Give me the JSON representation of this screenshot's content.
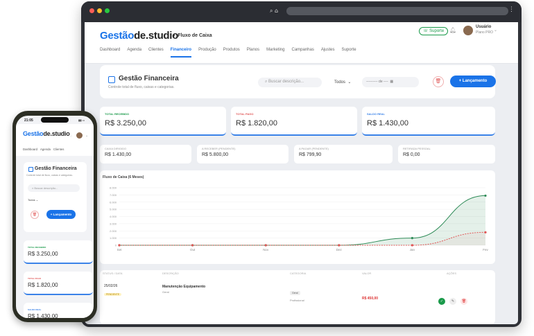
{
  "app": {
    "logo_part1": "Gestão",
    "logo_part2": "de.studio",
    "breadcrumb": "Fluxo de Caixa",
    "support": "Suporte",
    "user_name": "Usuário",
    "user_plan": "Plano PRO"
  },
  "nav": [
    "Dashboard",
    "Agenda",
    "Clientes",
    "Financeiro",
    "Produção",
    "Produtos",
    "Planos",
    "Marketing",
    "Campanhas",
    "Ajustes",
    "Suporte"
  ],
  "header": {
    "title": "Gestão Financeira",
    "subtitle": "Controle total de fluxo, caixas e categorias.",
    "search_placeholder": "Buscar descrição...",
    "period": "Todos",
    "date_range": "---------- de ----",
    "new_button": "+ Lançamento"
  },
  "kpis": [
    {
      "label": "TOTAL RECEBIDO",
      "value": "R$ 3.250,00",
      "color": "#1a9a4a"
    },
    {
      "label": "TOTAL PAGO",
      "value": "R$ 1.820,00",
      "color": "#e05555"
    },
    {
      "label": "SALDO REAL",
      "value": "R$ 1.430,00",
      "color": "#3a82e8"
    }
  ],
  "minis": [
    {
      "label": "CAIXA DIRIGIDO",
      "value": "R$ 1.430,00"
    },
    {
      "label": "A RECEBER (PENDENTE)",
      "value": "R$ 5.800,00"
    },
    {
      "label": "A PAGAR (PENDENTE)",
      "value": "R$ 799,90"
    },
    {
      "label": "RETIRADA PESSOAL",
      "value": "R$ 0,00"
    }
  ],
  "chart_data": {
    "type": "area",
    "title": "Fluxo de Caixa (6 Meses)",
    "categories": [
      "Set",
      "Out",
      "Nov",
      "Dez",
      "Jan",
      "Fev"
    ],
    "ylim": [
      0,
      8000
    ],
    "yticks": [
      "8.000",
      "7.000",
      "6.000",
      "5.000",
      "4.000",
      "3.000",
      "2.000",
      "1.000",
      "0"
    ],
    "series": [
      {
        "name": "",
        "values": [
          0,
          0,
          0,
          0,
          1000,
          6900
        ],
        "color": "#2e8b57"
      },
      {
        "name": "",
        "values": [
          0,
          0,
          0,
          0,
          0,
          1800
        ],
        "color": "#e05555"
      }
    ]
  },
  "table": {
    "headers": [
      "STATUS / DATA",
      "DESCRIÇÃO",
      "CATEGORIA",
      "VALOR",
      "AÇÕES"
    ],
    "row": {
      "date": "25/02/26",
      "status": "PENDENTE",
      "description": "Manutenção Equipamento",
      "sub": "Geral",
      "category": "Geral",
      "category_sub": "Profissional",
      "value": "R$ 450,00"
    }
  },
  "phone": {
    "time": "21:05",
    "tabs": [
      "Dashboard",
      "Agenda",
      "Clientes"
    ],
    "kpis": [
      {
        "label": "TOTAL RECEBIDO",
        "value": "R$ 3.250,00",
        "color": "#1a9a4a"
      },
      {
        "label": "TOTAL PAGO",
        "value": "R$ 1.820,00",
        "color": "#e05555"
      },
      {
        "label": "SALDO REAL",
        "value": "R$ 1.430,00",
        "color": "#3a82e8"
      }
    ]
  }
}
